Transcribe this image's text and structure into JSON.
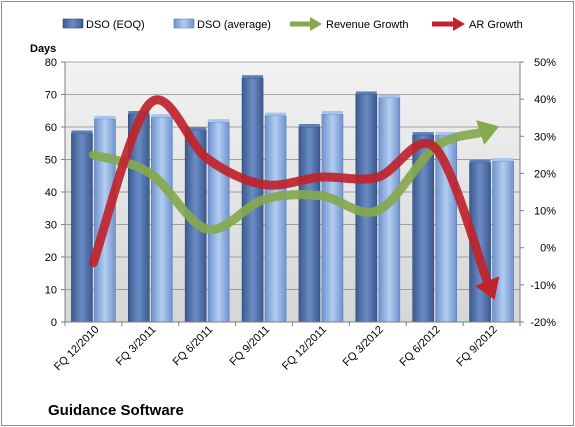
{
  "chart_data": {
    "type": "bar",
    "title": "Guidance Software",
    "ylabel": "Days",
    "ylim": [
      0,
      80
    ],
    "y_ticks": [
      0,
      10,
      20,
      30,
      40,
      50,
      60,
      70,
      80
    ],
    "y2lim": [
      -20,
      50
    ],
    "y2_ticks": [
      "-20%",
      "-10%",
      "0%",
      "10%",
      "20%",
      "30%",
      "40%",
      "50%"
    ],
    "categories": [
      "FQ 12/2010",
      "FQ 3/2011",
      "FQ 6/2011",
      "FQ 9/2011",
      "FQ 12/2011",
      "FQ 3/2012",
      "FQ 6/2012",
      "FQ 9/2012"
    ],
    "series": [
      {
        "name": "DSO (EOQ)",
        "type": "bar",
        "axis": "left",
        "color": "#4f6fa8",
        "values": [
          58,
          64,
          59,
          75,
          60,
          70,
          57.5,
          49
        ]
      },
      {
        "name": "DSO (average)",
        "type": "bar",
        "axis": "left",
        "color": "#8eaee0",
        "values": [
          62.5,
          63,
          61.5,
          63.5,
          64,
          69,
          57.5,
          49.5
        ]
      },
      {
        "name": "Revenue Growth",
        "type": "line",
        "axis": "right",
        "color": "#86a84e",
        "values": [
          25,
          20,
          5,
          13,
          14,
          10,
          27,
          32
        ]
      },
      {
        "name": "AR Growth",
        "type": "line",
        "axis": "right",
        "color": "#c0232b",
        "values": [
          -4,
          39,
          24,
          17,
          19,
          19,
          27,
          -12
        ]
      }
    ],
    "grid": true,
    "legend": "top"
  }
}
